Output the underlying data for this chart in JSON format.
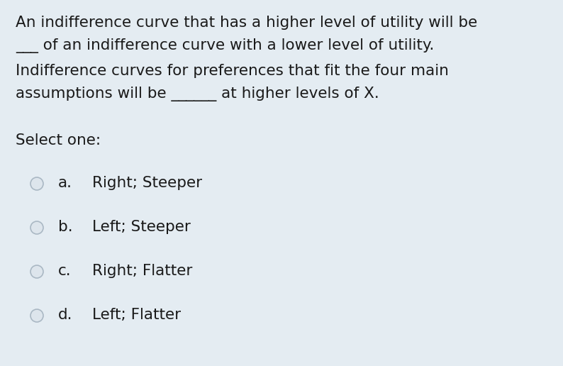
{
  "background_color": "#e4ecf2",
  "text_color": "#1a1a1a",
  "question_lines": [
    "An indifference curve that has a higher level of utility will be",
    "___ of an indifference curve with a lower level of utility.",
    "Indifference curves for preferences that fit the four main",
    "assumptions will be ______ at higher levels of X."
  ],
  "select_one_label": "Select one:",
  "options": [
    {
      "letter": "a.",
      "text": "Right; Steeper"
    },
    {
      "letter": "b.",
      "text": "Left; Steeper"
    },
    {
      "letter": "c.",
      "text": "Right; Flatter"
    },
    {
      "letter": "d.",
      "text": "Left; Flatter"
    }
  ],
  "question_fontsize": 15.5,
  "option_fontsize": 15.5,
  "select_fontsize": 15.5,
  "circle_facecolor": "#dde5ec",
  "circle_edgecolor": "#aab8c4",
  "fig_width": 7.94,
  "fig_height": 5.16,
  "dpi": 100
}
